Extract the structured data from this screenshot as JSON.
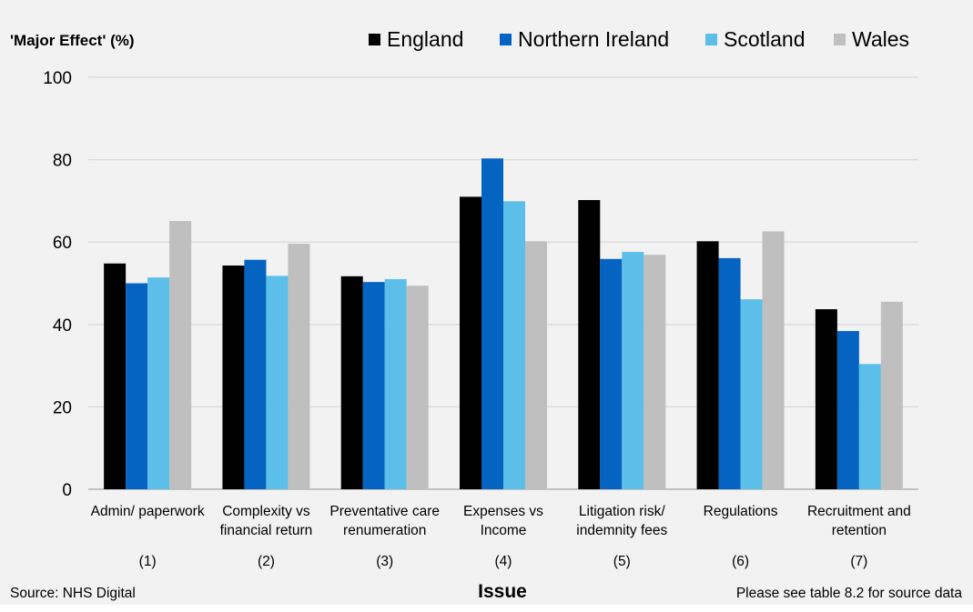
{
  "chart_data": {
    "type": "bar",
    "ylabel": "'Major Effect' (%)",
    "xlabel": "Issue",
    "ylim": [
      0,
      100
    ],
    "yticks": [
      0,
      20,
      40,
      60,
      80,
      100
    ],
    "grid": true,
    "legend_position": "top-right",
    "categories": [
      {
        "lines": [
          "Admin/ paperwork"
        ],
        "number": "(1)"
      },
      {
        "lines": [
          "Complexity vs",
          "financial return"
        ],
        "number": "(2)"
      },
      {
        "lines": [
          "Preventative care",
          "renumeration"
        ],
        "number": "(3)"
      },
      {
        "lines": [
          "Expenses vs",
          "Income"
        ],
        "number": "(4)"
      },
      {
        "lines": [
          "Litigation risk/",
          "indemnity fees"
        ],
        "number": "(5)"
      },
      {
        "lines": [
          "Regulations"
        ],
        "number": "(6)"
      },
      {
        "lines": [
          "Recruitment and",
          "retention"
        ],
        "number": "(7)"
      }
    ],
    "series": [
      {
        "name": "England",
        "color": "#000000",
        "values": [
          54.8,
          54.3,
          51.7,
          71.0,
          70.2,
          60.2,
          43.7
        ]
      },
      {
        "name": "Northern Ireland",
        "color": "#0563c1",
        "values": [
          50.0,
          55.7,
          50.3,
          80.3,
          55.9,
          56.1,
          38.4
        ]
      },
      {
        "name": "Scotland",
        "color": "#5bbfe9",
        "values": [
          51.4,
          51.8,
          51.0,
          69.9,
          57.6,
          46.1,
          30.4
        ]
      },
      {
        "name": "Wales",
        "color": "#bfbfbf",
        "values": [
          65.1,
          59.6,
          49.4,
          60.2,
          56.9,
          62.6,
          45.5
        ]
      }
    ]
  },
  "footer": {
    "source": "Source: NHS Digital",
    "note": "Please see table 8.2 for source data"
  }
}
